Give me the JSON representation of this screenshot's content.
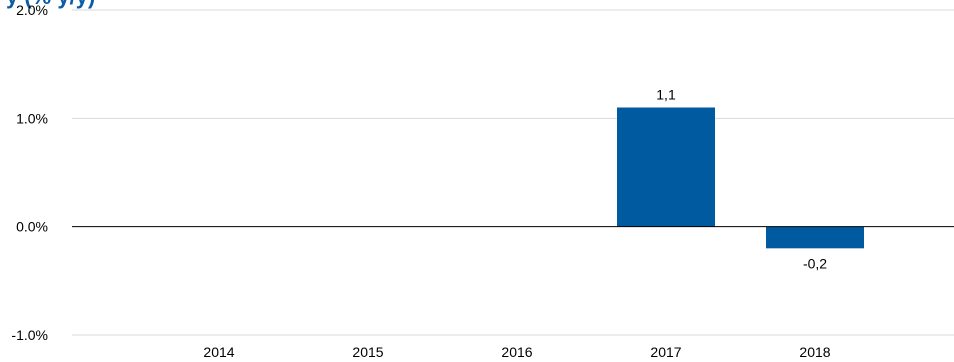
{
  "title_fragment": "y (% y/y)",
  "chart_data": {
    "type": "bar",
    "categories": [
      "2014",
      "2015",
      "2016",
      "2017",
      "2018"
    ],
    "values": [
      null,
      null,
      null,
      1.1,
      -0.2
    ],
    "data_labels": [
      "",
      "",
      "",
      "1,1",
      "-0,2"
    ],
    "ylim": [
      -1.0,
      2.0
    ],
    "yticks": [
      2.0,
      1.0,
      0.0,
      -1.0
    ],
    "ytick_labels": [
      "2.0%",
      "1.0%",
      "0.0%",
      "-1.0%"
    ],
    "grid": true,
    "bar_color": "#005aa0",
    "title_color": "#0b5ca8"
  }
}
